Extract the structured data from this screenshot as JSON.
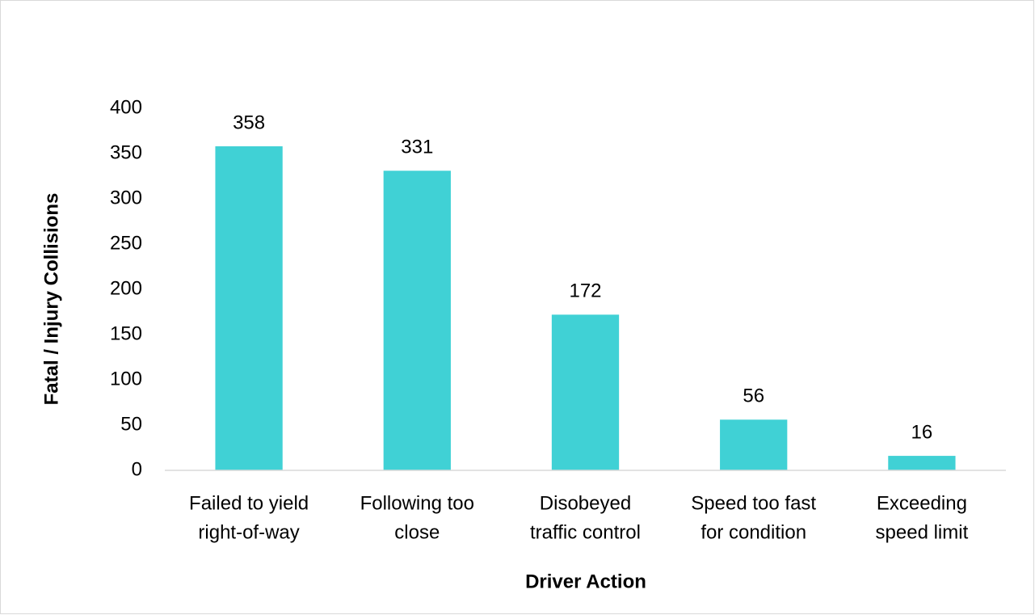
{
  "chart_data": {
    "type": "bar",
    "categories": [
      [
        "Failed to yield",
        "right-of-way"
      ],
      [
        "Following too",
        "close"
      ],
      [
        "Disobeyed",
        "traffic control"
      ],
      [
        "Speed too fast",
        "for condition"
      ],
      [
        "Exceeding",
        "speed limit"
      ]
    ],
    "values": [
      358,
      331,
      172,
      56,
      16
    ],
    "color": "#40d1d5",
    "ylim": [
      0,
      400
    ],
    "yticks": [
      0,
      50,
      100,
      150,
      200,
      250,
      300,
      350,
      400
    ],
    "xlabel": "Driver Action",
    "ylabel": "Fatal / Injury Collisions",
    "grid": false
  }
}
